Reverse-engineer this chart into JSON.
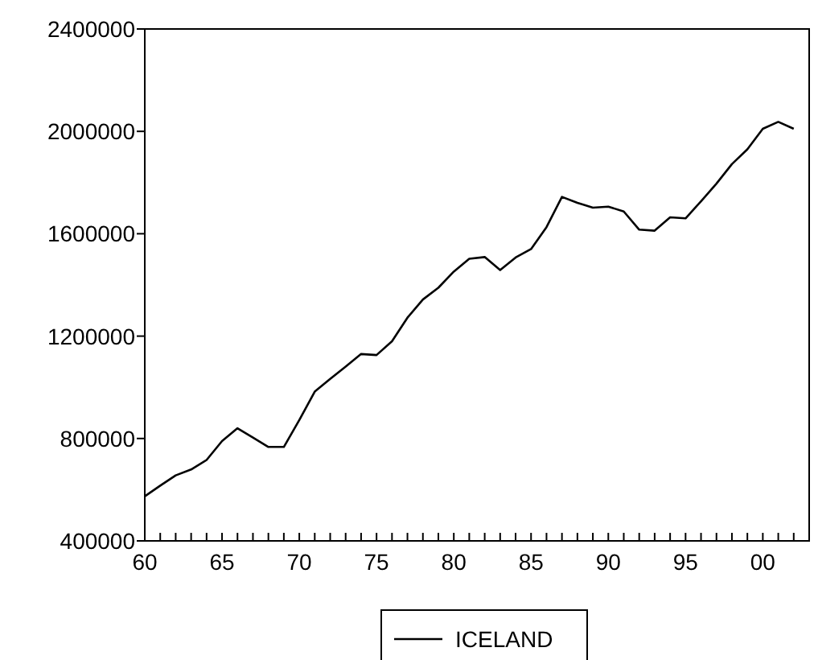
{
  "chart_data": {
    "type": "line",
    "x": [
      1960,
      1961,
      1962,
      1963,
      1964,
      1965,
      1966,
      1967,
      1968,
      1969,
      1970,
      1971,
      1972,
      1973,
      1974,
      1975,
      1976,
      1977,
      1978,
      1979,
      1980,
      1981,
      1982,
      1983,
      1984,
      1985,
      1986,
      1987,
      1988,
      1989,
      1990,
      1991,
      1992,
      1993,
      1994,
      1995,
      1996,
      1997,
      1998,
      1999,
      2000,
      2001,
      2002
    ],
    "series": [
      {
        "name": "ICELAND",
        "color": "#000000",
        "values": [
          574000,
          616000,
          656000,
          679000,
          716000,
          790000,
          840000,
          804000,
          767000,
          767000,
          872000,
          983000,
          1033000,
          1081000,
          1130000,
          1126000,
          1180000,
          1272000,
          1343000,
          1389000,
          1452000,
          1502000,
          1509000,
          1458000,
          1507000,
          1540000,
          1626000,
          1744000,
          1721000,
          1702000,
          1706000,
          1687000,
          1616000,
          1612000,
          1664000,
          1660000,
          1727000,
          1796000,
          1872000,
          1930000,
          2010000,
          2037000,
          2010000
        ]
      }
    ],
    "xlim": [
      1960,
      2003
    ],
    "xticks": [
      {
        "value": 1960,
        "label": "60"
      },
      {
        "value": 1961,
        "label": null
      },
      {
        "value": 1962,
        "label": null
      },
      {
        "value": 1963,
        "label": null
      },
      {
        "value": 1964,
        "label": null
      },
      {
        "value": 1965,
        "label": "65"
      },
      {
        "value": 1966,
        "label": null
      },
      {
        "value": 1967,
        "label": null
      },
      {
        "value": 1968,
        "label": null
      },
      {
        "value": 1969,
        "label": null
      },
      {
        "value": 1970,
        "label": "70"
      },
      {
        "value": 1971,
        "label": null
      },
      {
        "value": 1972,
        "label": null
      },
      {
        "value": 1973,
        "label": null
      },
      {
        "value": 1974,
        "label": null
      },
      {
        "value": 1975,
        "label": "75"
      },
      {
        "value": 1976,
        "label": null
      },
      {
        "value": 1977,
        "label": null
      },
      {
        "value": 1978,
        "label": null
      },
      {
        "value": 1979,
        "label": null
      },
      {
        "value": 1980,
        "label": "80"
      },
      {
        "value": 1981,
        "label": null
      },
      {
        "value": 1982,
        "label": null
      },
      {
        "value": 1983,
        "label": null
      },
      {
        "value": 1984,
        "label": null
      },
      {
        "value": 1985,
        "label": "85"
      },
      {
        "value": 1986,
        "label": null
      },
      {
        "value": 1987,
        "label": null
      },
      {
        "value": 1988,
        "label": null
      },
      {
        "value": 1989,
        "label": null
      },
      {
        "value": 1990,
        "label": "90"
      },
      {
        "value": 1991,
        "label": null
      },
      {
        "value": 1992,
        "label": null
      },
      {
        "value": 1993,
        "label": null
      },
      {
        "value": 1994,
        "label": null
      },
      {
        "value": 1995,
        "label": "95"
      },
      {
        "value": 1996,
        "label": null
      },
      {
        "value": 1997,
        "label": null
      },
      {
        "value": 1998,
        "label": null
      },
      {
        "value": 1999,
        "label": null
      },
      {
        "value": 2000,
        "label": "00"
      },
      {
        "value": 2001,
        "label": null
      },
      {
        "value": 2002,
        "label": null
      },
      {
        "value": 2003,
        "label": null
      }
    ],
    "ylim": [
      400000,
      2400000
    ],
    "yticks": [
      400000,
      800000,
      1200000,
      1600000,
      2000000,
      2400000
    ],
    "grid": false,
    "legend": "bottom",
    "marker": "none",
    "line_style": "solid"
  }
}
